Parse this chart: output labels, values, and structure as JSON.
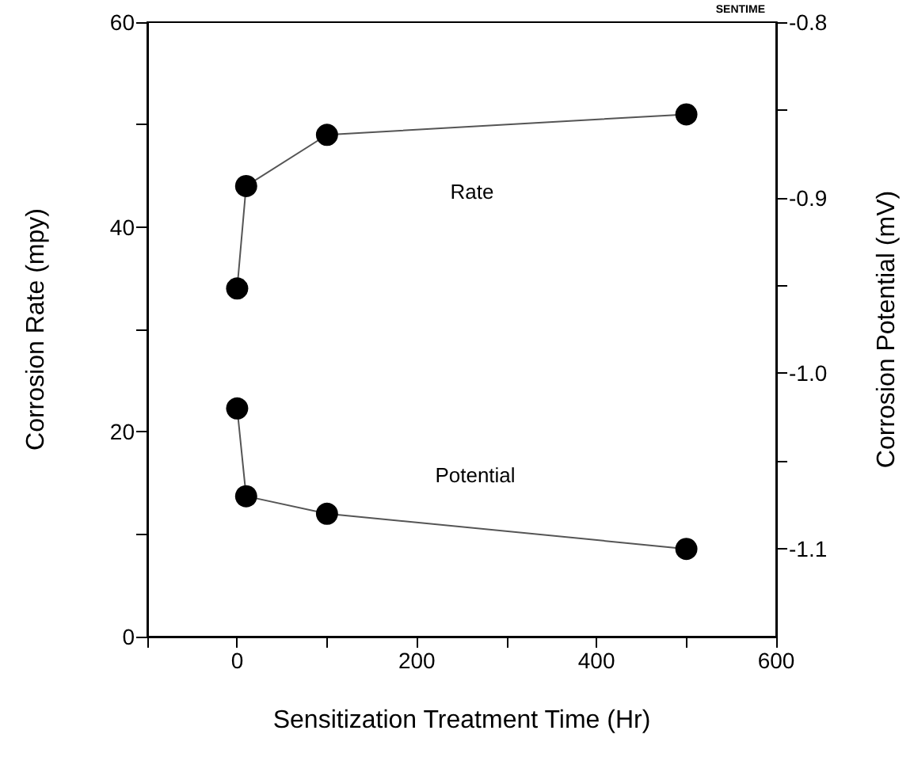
{
  "chart_data": {
    "type": "line",
    "xlabel": "Sensitization Treatment Time (Hr)",
    "ylabel": "Corrosion Rate (mpy)",
    "y2label": "Corrosion Potential (mV)",
    "x": [
      0,
      10,
      100,
      500
    ],
    "series": [
      {
        "color": "#000000",
        "values": [
          34,
          44,
          49,
          51
        ]
      },
      {
        "color": "#000000",
        "values": [
          -1.02,
          -1.07,
          -1.08,
          -1.1
        ],
        "axis": "y2"
      }
    ],
    "xlim": [
      -100,
      600
    ],
    "xticks": [
      {
        "value": -100,
        "label": null
      },
      0,
      {
        "value": 100,
        "label": null
      },
      200,
      {
        "value": 300,
        "label": null
      },
      400,
      {
        "value": 500,
        "label": null
      },
      600
    ],
    "ylim": [
      0,
      60
    ],
    "yticks": [
      0,
      {
        "value": 10,
        "label": null
      },
      20,
      {
        "value": 30,
        "label": null
      },
      40,
      {
        "value": 50,
        "label": null
      },
      60
    ],
    "y2lim": [
      -1.15,
      -0.8
    ],
    "y2ticks": [
      {
        "value": -1.1,
        "label": "-1.1"
      },
      {
        "value": -1.05,
        "label": null
      },
      {
        "value": -1.0,
        "label": "-1.0"
      },
      {
        "value": -0.95,
        "label": null
      },
      {
        "value": -0.9,
        "label": "-0.9"
      },
      {
        "value": -0.85,
        "label": null
      },
      {
        "value": -0.8,
        "label": "-0.8"
      }
    ],
    "annotations": [
      "Rate",
      "Potential",
      "SENTIME"
    ],
    "marker": "circle",
    "line_style": "solid"
  }
}
